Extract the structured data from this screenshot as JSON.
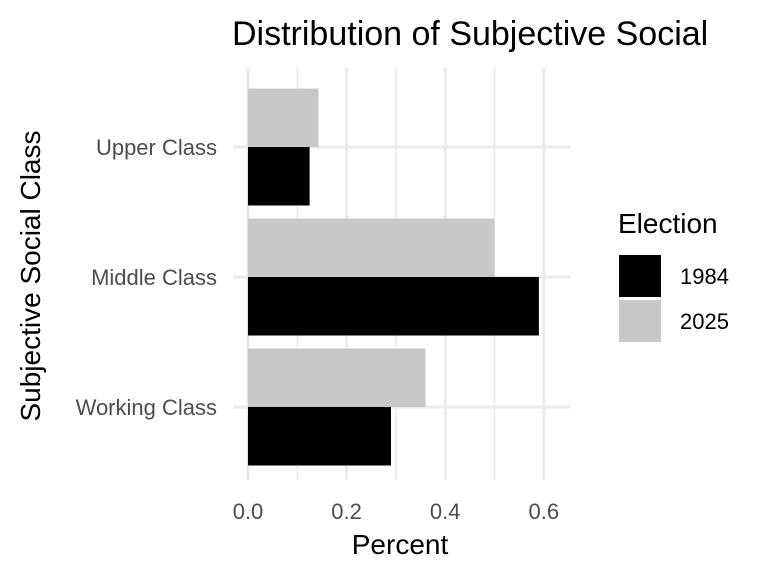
{
  "chart_data": {
    "type": "bar",
    "orientation": "horizontal",
    "title": "Distribution of Subjective Social",
    "xlabel": "Percent",
    "ylabel": "Subjective Social Class",
    "categories": [
      "Upper Class",
      "Middle Class",
      "Working Class"
    ],
    "series": [
      {
        "name": "1984",
        "color": "#000000",
        "values": [
          0.125,
          0.59,
          0.29
        ]
      },
      {
        "name": "2025",
        "color": "#c8c8c8",
        "values": [
          0.143,
          0.5,
          0.36
        ]
      }
    ],
    "xlim": [
      0,
      0.65
    ],
    "xticks": [
      0.0,
      0.2,
      0.4,
      0.6
    ],
    "xtick_labels": [
      "0.0",
      "0.2",
      "0.4",
      "0.6"
    ],
    "grid": true,
    "legend": {
      "title": "Election",
      "position": "right",
      "entries": [
        "1984",
        "2025"
      ]
    }
  }
}
